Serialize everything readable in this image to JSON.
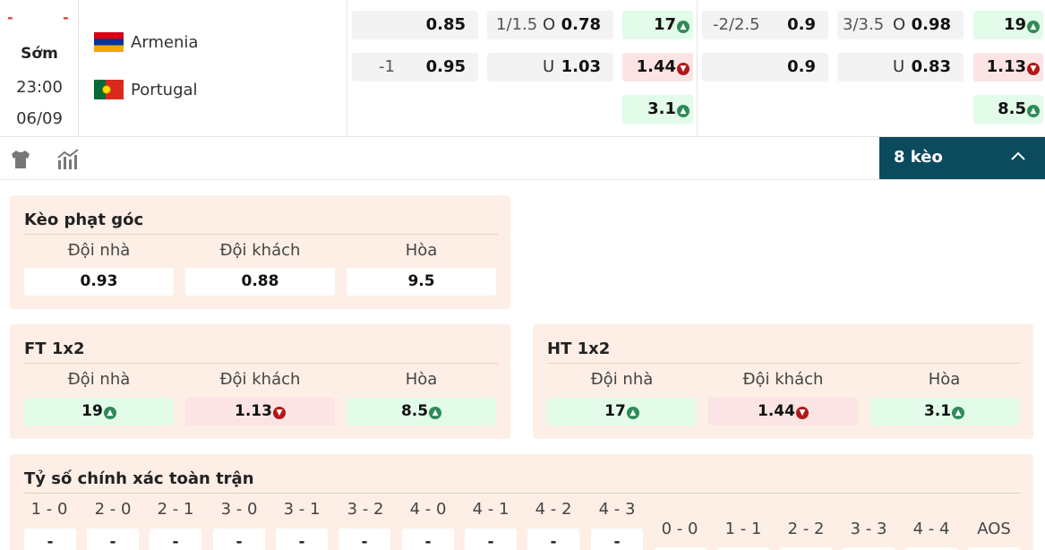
{
  "match": {
    "dashes": [
      "-",
      "-"
    ],
    "status": "Sớm",
    "time": "23:00",
    "date": "06/09",
    "home": {
      "name": "Armenia",
      "flag": "armenia-flag-icon"
    },
    "away": {
      "name": "Portugal",
      "flag": "portugal-flag-icon"
    }
  },
  "markets": {
    "ft_hdp": {
      "home_line": "",
      "home_odd": "0.85",
      "away_line": "-1",
      "away_odd": "0.95"
    },
    "ft_ou": {
      "line": "1/1.5",
      "over_label": "O",
      "over_odd": "0.78",
      "under_label": "U",
      "under_odd": "1.03"
    },
    "ht_1x2": {
      "home": "17",
      "away": "1.44",
      "draw": "3.1"
    },
    "ht_hdp": {
      "home_line": "-2/2.5",
      "home_odd": "0.9",
      "away_line": "",
      "away_odd": "0.9"
    },
    "ht_ou": {
      "line": "3/3.5",
      "over_label": "O",
      "over_odd": "0.98",
      "under_label": "U",
      "under_odd": "0.83"
    },
    "ft_1x2": {
      "home": "19",
      "away": "1.13",
      "draw": "8.5"
    }
  },
  "toolbar": {
    "shirt_icon": "shirt-icon",
    "stats_icon": "stats-icon",
    "bets_label": "8 kèo",
    "bets_icon": "chevron-up-icon",
    "accent": "#0c4a5e"
  },
  "corner_panel": {
    "title": "Kèo phạt góc",
    "headers": [
      "Đội nhà",
      "Đội khách",
      "Hòa"
    ],
    "values": [
      "0.93",
      "0.88",
      "9.5"
    ]
  },
  "ft_panel": {
    "title": "FT 1x2",
    "headers": [
      "Đội nhà",
      "Đội khách",
      "Hòa"
    ],
    "values": [
      "19",
      "1.13",
      "8.5"
    ]
  },
  "ht_panel": {
    "title": "HT 1x2",
    "headers": [
      "Đội nhà",
      "Đội khách",
      "Hòa"
    ],
    "values": [
      "17",
      "1.44",
      "3.1"
    ]
  },
  "score_panel": {
    "title": "Tỷ số chính xác toàn trận",
    "labels": [
      "1 - 0",
      "2 - 0",
      "2 - 1",
      "3 - 0",
      "3 - 1",
      "3 - 2",
      "4 - 0",
      "4 - 1",
      "4 - 2",
      "4 - 3"
    ],
    "draw_labels": [
      "0 - 0",
      "1 - 1",
      "2 - 2",
      "3 - 3",
      "4 - 4",
      "AOS"
    ],
    "value": "-"
  },
  "colors": {
    "up": "#2e8b57",
    "down": "#b01919",
    "panel_bg": "#fdefe6"
  }
}
